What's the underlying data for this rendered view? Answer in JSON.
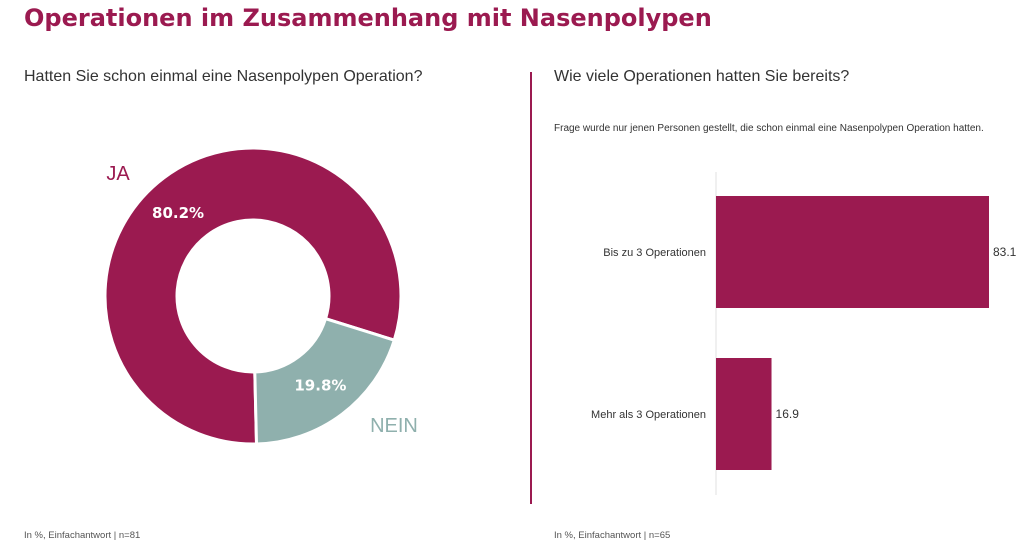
{
  "title": "Operationen im Zusammenhang mit Nasenpolypen",
  "left_panel": {
    "question": "Hatten Sie schon einmal eine Nasenpolypen Operation?",
    "footnote": "In %, Einfachantwort | n=81"
  },
  "right_panel": {
    "question": "Wie viele Operationen hatten Sie bereits?",
    "note": "Frage wurde nur jenen Personen gestellt, die schon einmal eine Nasenpolypen Operation hatten.",
    "footnote": "In %, Einfachantwort | n=65"
  },
  "colors": {
    "primary": "#9b1a50",
    "secondary": "#8fb0ad",
    "text": "#333333"
  },
  "chart_data": [
    {
      "type": "pie",
      "variant": "donut",
      "slices": [
        {
          "label": "JA",
          "value": 80.2,
          "value_label": "80.2%",
          "color": "#9b1a50"
        },
        {
          "label": "NEIN",
          "value": 19.8,
          "value_label": "19.8%",
          "color": "#8fb0ad"
        }
      ]
    },
    {
      "type": "bar",
      "orientation": "horizontal",
      "categories": [
        "Bis zu 3 Operationen",
        "Mehr als 3 Operationen"
      ],
      "values": [
        83.1,
        16.9
      ],
      "value_labels": [
        "83.1",
        "16.9"
      ],
      "xlim": [
        0,
        83.1
      ],
      "color": "#9b1a50"
    }
  ]
}
